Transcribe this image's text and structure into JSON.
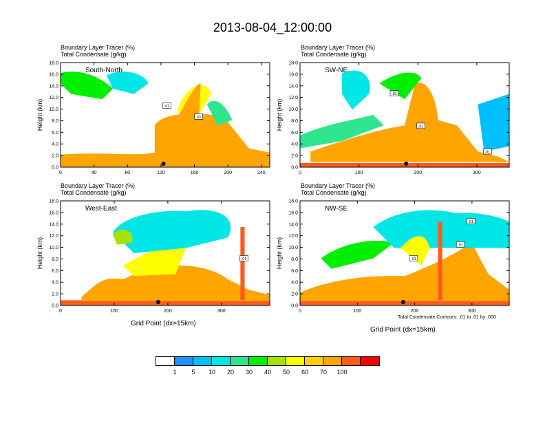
{
  "title": "2013-08-04_12:00:00",
  "footnote": "Total Condensate Contours: .01 to .01 by .000",
  "x_axis_label": "Grid Point (dx=15km)",
  "colorbar": {
    "colors": [
      "#ffffff",
      "#1e90ff",
      "#00bfff",
      "#00e5e5",
      "#2ee58e",
      "#00ee00",
      "#a8e000",
      "#ffff00",
      "#ffd000",
      "#ffa500",
      "#ff5a1e",
      "#ff0000"
    ],
    "labels": [
      "1",
      "5",
      "10",
      "20",
      "30",
      "40",
      "50",
      "60",
      "70",
      "100"
    ]
  },
  "chart_data": [
    {
      "type": "heatmap",
      "subtitle1": "Boundary Layer Tracer   (%)",
      "subtitle2": "Total Condensate   (g/kg)",
      "inset_label": "South-North",
      "ylabel": "Height (km)",
      "xlabel": "",
      "xlim": [
        0,
        250
      ],
      "ylim": [
        0,
        18
      ],
      "xticks": [
        "0",
        "40",
        "80",
        "120",
        "160",
        "200",
        "240"
      ],
      "xtick_values": [
        0,
        40,
        80,
        120,
        160,
        200,
        240
      ],
      "yticks": [
        "0.0",
        "2.0",
        "4.0",
        "6.0",
        "8.0",
        "10.0",
        "12.0",
        "14.0",
        "16.0",
        "18.0"
      ],
      "contour_labels": [
        {
          "text": ".01",
          "x": 127,
          "y": 10.5
        },
        {
          "text": ".01",
          "x": 165,
          "y": 8.6
        }
      ],
      "marker_x": 123
    },
    {
      "type": "heatmap",
      "subtitle1": "Boundary Layer Tracer   (%)",
      "subtitle2": "Total Condensate   (g/kg)",
      "inset_label": "SW-NE",
      "ylabel": "Height (km)",
      "xlabel": "",
      "xlim": [
        0,
        355
      ],
      "ylim": [
        0,
        18
      ],
      "xticks": [
        "0",
        "100",
        "200",
        "300"
      ],
      "xtick_values": [
        0,
        100,
        200,
        300
      ],
      "yticks": [
        "0.0",
        "2.0",
        "4.0",
        "6.0",
        "8.0",
        "10.0",
        "12.0",
        "14.0",
        "16.0",
        "18.0"
      ],
      "contour_labels": [
        {
          "text": ".01",
          "x": 160,
          "y": 12.6
        },
        {
          "text": ".01",
          "x": 205,
          "y": 7.0
        },
        {
          "text": ".01",
          "x": 318,
          "y": 2.6
        }
      ],
      "marker_x": 180
    },
    {
      "type": "heatmap",
      "subtitle1": "Boundary Layer Tracer   (%)",
      "subtitle2": "Total Condensate   (g/kg)",
      "inset_label": "West-East",
      "ylabel": "Height (km)",
      "xlabel": "Grid Point (dx=15km)",
      "xlim": [
        0,
        390
      ],
      "ylim": [
        0,
        18
      ],
      "xticks": [
        "0",
        "100",
        "200",
        "300"
      ],
      "xtick_values": [
        0,
        100,
        200,
        300
      ],
      "yticks": [
        "0.0",
        "2.0",
        "4.0",
        "6.0",
        "8.0",
        "10.0",
        "12.0",
        "14.0",
        "16.0",
        "18.0"
      ],
      "contour_labels": [
        {
          "text": ".01",
          "x": 342,
          "y": 8.0
        }
      ],
      "marker_x": 182
    },
    {
      "type": "heatmap",
      "subtitle1": "Boundary Layer Tracer   (%)",
      "subtitle2": "Total Condensate   (g/kg)",
      "inset_label": "NW-SE",
      "ylabel": "Height (km)",
      "xlabel": "Grid Point (dx=15km)",
      "xlim": [
        0,
        365
      ],
      "ylim": [
        0,
        18
      ],
      "xticks": [
        "0",
        "100",
        "200",
        "300"
      ],
      "xtick_values": [
        0,
        100,
        200,
        300
      ],
      "yticks": [
        "0.0",
        "2.0",
        "4.0",
        "6.0",
        "8.0",
        "10.0",
        "12.0",
        "14.0",
        "16.0",
        "18.0"
      ],
      "contour_labels": [
        {
          "text": ".01",
          "x": 298,
          "y": 14.4
        },
        {
          "text": ".01",
          "x": 280,
          "y": 10.4
        },
        {
          "text": ".01",
          "x": 198,
          "y": 8.0
        }
      ],
      "marker_x": 180
    }
  ]
}
